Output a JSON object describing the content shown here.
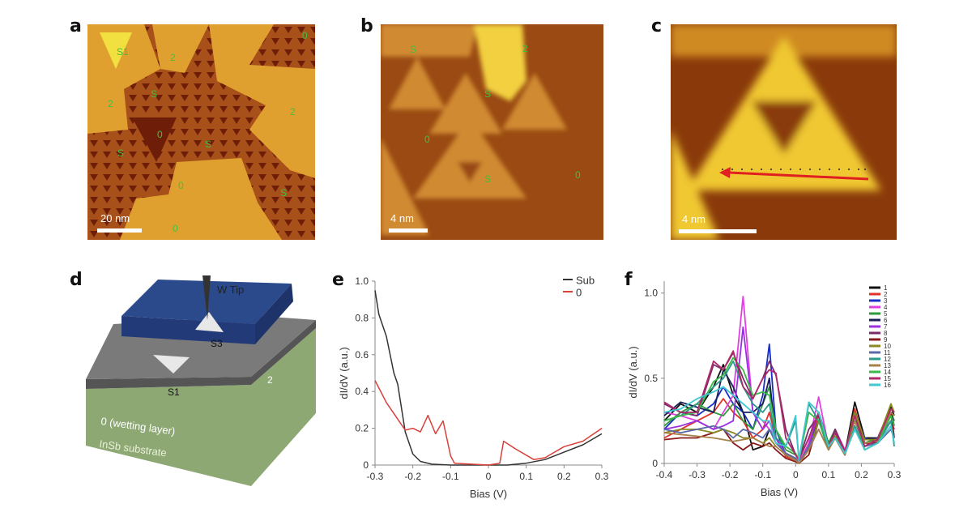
{
  "panels": {
    "a": {
      "label": "a",
      "scale_bar": "20 nm",
      "region_labels": [
        "S1",
        "2",
        "0",
        "S",
        "2",
        "0",
        "S",
        "2",
        "S",
        "0",
        "S",
        "0"
      ]
    },
    "b": {
      "label": "b",
      "scale_bar": "4 nm",
      "region_labels": [
        "S",
        "2",
        "S",
        "0",
        "S",
        "0"
      ]
    },
    "c": {
      "label": "c",
      "scale_bar": "4 nm"
    },
    "d": {
      "label": "d",
      "tip": "W Tip",
      "top_sierpinski": "S3",
      "lower_sierpinski": "S1",
      "layer_2": "2",
      "wetting_layer": "0 (wetting layer)",
      "substrate": "InSb substrate",
      "colors": {
        "layer_2": "#2b4a8c",
        "wetting": "#7a7a7a",
        "substrate": "#8ea874"
      }
    },
    "e": {
      "label": "e"
    },
    "f": {
      "label": "f"
    }
  },
  "chart_data": [
    {
      "type": "line",
      "panel": "e",
      "xlabel": "Bias (V)",
      "ylabel": "dI/dV (a.u.)",
      "xlim": [
        -0.3,
        0.3
      ],
      "ylim": [
        0,
        1.0
      ],
      "xticks": [
        "-0.3",
        "-0.2",
        "-0.1",
        "0",
        "0.1",
        "0.2",
        "0.3"
      ],
      "yticks": [
        "0",
        "0.2",
        "0.4",
        "0.6",
        "0.8",
        "1.0"
      ],
      "legend": "top-right",
      "series": [
        {
          "name": "Sub",
          "color": "#333333",
          "x": [
            -0.3,
            -0.29,
            -0.27,
            -0.25,
            -0.24,
            -0.22,
            -0.2,
            -0.18,
            -0.15,
            -0.1,
            0,
            0.05,
            0.1,
            0.15,
            0.2,
            0.25,
            0.3
          ],
          "y": [
            0.95,
            0.82,
            0.7,
            0.5,
            0.44,
            0.18,
            0.06,
            0.02,
            0.005,
            0,
            0,
            0,
            0.01,
            0.03,
            0.07,
            0.11,
            0.17
          ]
        },
        {
          "name": "0",
          "color": "#d9403a",
          "x": [
            -0.3,
            -0.27,
            -0.24,
            -0.22,
            -0.2,
            -0.18,
            -0.16,
            -0.14,
            -0.12,
            -0.1,
            -0.09,
            0,
            0.03,
            0.04,
            0.07,
            0.12,
            0.15,
            0.2,
            0.25,
            0.3
          ],
          "y": [
            0.46,
            0.34,
            0.25,
            0.19,
            0.2,
            0.18,
            0.27,
            0.17,
            0.24,
            0.05,
            0.01,
            0,
            0.01,
            0.13,
            0.09,
            0.03,
            0.04,
            0.1,
            0.13,
            0.2
          ]
        }
      ]
    },
    {
      "type": "line",
      "panel": "f",
      "xlabel": "Bias (V)",
      "ylabel": "dI/dV (a.u.)",
      "xlim": [
        -0.4,
        0.3
      ],
      "ylim": [
        0,
        1.07
      ],
      "xticks": [
        "-0.4",
        "-0.3",
        "-0.2",
        "-0.1",
        "0",
        "0.1",
        "0.2",
        "0.3"
      ],
      "yticks": [
        "0",
        "0.5",
        "1.0"
      ],
      "legend": "top-right",
      "x": [
        -0.4,
        -0.35,
        -0.3,
        -0.25,
        -0.22,
        -0.19,
        -0.16,
        -0.13,
        -0.1,
        -0.08,
        -0.06,
        -0.03,
        0,
        0.01,
        0.04,
        0.07,
        0.1,
        0.12,
        0.15,
        0.18,
        0.21,
        0.25,
        0.29,
        0.3
      ],
      "series": [
        {
          "name": "1",
          "color": "#111111",
          "values": [
            0.25,
            0.35,
            0.3,
            0.45,
            0.58,
            0.4,
            0.3,
            0.08,
            0.1,
            0.2,
            0.15,
            0.05,
            0.02,
            0,
            0.1,
            0.3,
            0.12,
            0.18,
            0.06,
            0.36,
            0.15,
            0.15,
            0.33,
            0.28
          ]
        },
        {
          "name": "2",
          "color": "#e0302a",
          "values": [
            0.15,
            0.2,
            0.25,
            0.3,
            0.38,
            0.3,
            0.25,
            0.15,
            0.2,
            0.3,
            0.15,
            0.04,
            0.02,
            0,
            0.08,
            0.28,
            0.1,
            0.18,
            0.05,
            0.32,
            0.12,
            0.12,
            0.3,
            0.25
          ]
        },
        {
          "name": "3",
          "color": "#1a2fc8",
          "values": [
            0.2,
            0.3,
            0.28,
            0.35,
            0.45,
            0.35,
            0.3,
            0.2,
            0.4,
            0.7,
            0.2,
            0.05,
            0.02,
            0,
            0.08,
            0.25,
            0.1,
            0.2,
            0.06,
            0.28,
            0.15,
            0.12,
            0.3,
            0.15
          ]
        },
        {
          "name": "4",
          "color": "#e040e0",
          "values": [
            0.3,
            0.28,
            0.25,
            0.2,
            0.3,
            0.4,
            0.98,
            0.3,
            0.25,
            0.2,
            0.15,
            0.05,
            0.03,
            0,
            0.12,
            0.39,
            0.1,
            0.2,
            0.08,
            0.25,
            0.12,
            0.12,
            0.25,
            0.2
          ]
        },
        {
          "name": "5",
          "color": "#2e9a3a",
          "values": [
            0.22,
            0.3,
            0.35,
            0.3,
            0.28,
            0.35,
            0.25,
            0.2,
            0.35,
            0.45,
            0.2,
            0.08,
            0.05,
            0.02,
            0.15,
            0.3,
            0.12,
            0.2,
            0.06,
            0.3,
            0.12,
            0.15,
            0.3,
            0.25
          ]
        },
        {
          "name": "6",
          "color": "#1a1f5a",
          "values": [
            0.28,
            0.36,
            0.33,
            0.3,
            0.55,
            0.45,
            0.3,
            0.3,
            0.35,
            0.5,
            0.15,
            0.06,
            0.03,
            0,
            0.1,
            0.25,
            0.1,
            0.18,
            0.06,
            0.3,
            0.14,
            0.15,
            0.3,
            0.22
          ]
        },
        {
          "name": "7",
          "color": "#9a30e0",
          "values": [
            0.2,
            0.22,
            0.25,
            0.2,
            0.22,
            0.25,
            0.8,
            0.3,
            0.2,
            0.25,
            0.15,
            0.06,
            0.03,
            0,
            0.1,
            0.3,
            0.08,
            0.15,
            0.06,
            0.2,
            0.1,
            0.14,
            0.25,
            0.2
          ]
        },
        {
          "name": "8",
          "color": "#7a2a6a",
          "values": [
            0.35,
            0.3,
            0.28,
            0.58,
            0.55,
            0.65,
            0.5,
            0.38,
            0.5,
            0.6,
            0.52,
            0.2,
            0.05,
            0.02,
            0.2,
            0.28,
            0.1,
            0.2,
            0.07,
            0.25,
            0.1,
            0.15,
            0.32,
            0.3
          ]
        },
        {
          "name": "9",
          "color": "#8a1a1a",
          "values": [
            0.14,
            0.15,
            0.15,
            0.18,
            0.2,
            0.12,
            0.08,
            0.12,
            0.1,
            0.12,
            0.08,
            0.03,
            0.01,
            0,
            0.05,
            0.25,
            0.1,
            0.15,
            0.05,
            0.3,
            0.12,
            0.12,
            0.3,
            0.15
          ]
        },
        {
          "name": "10",
          "color": "#8a8a20",
          "values": [
            0.18,
            0.2,
            0.2,
            0.18,
            0.2,
            0.18,
            0.15,
            0.15,
            0.12,
            0.15,
            0.1,
            0.05,
            0.02,
            0,
            0.08,
            0.25,
            0.1,
            0.16,
            0.06,
            0.3,
            0.14,
            0.14,
            0.35,
            0.3
          ]
        },
        {
          "name": "11",
          "color": "#5a6aa8",
          "values": [
            0.2,
            0.18,
            0.2,
            0.22,
            0.2,
            0.15,
            0.2,
            0.18,
            0.15,
            0.2,
            0.12,
            0.06,
            0.03,
            0,
            0.1,
            0.2,
            0.08,
            0.15,
            0.06,
            0.2,
            0.1,
            0.12,
            0.2,
            0.15
          ]
        },
        {
          "name": "12",
          "color": "#2a9a8a",
          "values": [
            0.25,
            0.28,
            0.35,
            0.45,
            0.5,
            0.6,
            0.45,
            0.35,
            0.3,
            0.35,
            0.15,
            0.1,
            0.25,
            0.02,
            0.35,
            0.25,
            0.08,
            0.15,
            0.05,
            0.22,
            0.08,
            0.12,
            0.25,
            0.1
          ]
        },
        {
          "name": "13",
          "color": "#a8804a",
          "values": [
            0.18,
            0.17,
            0.16,
            0.15,
            0.14,
            0.13,
            0.14,
            0.15,
            0.12,
            0.1,
            0.1,
            0.05,
            0.02,
            0,
            0.08,
            0.2,
            0.08,
            0.15,
            0.05,
            0.25,
            0.12,
            0.13,
            0.3,
            0.28
          ]
        },
        {
          "name": "14",
          "color": "#3ab84a",
          "values": [
            0.25,
            0.28,
            0.3,
            0.48,
            0.52,
            0.62,
            0.55,
            0.4,
            0.42,
            0.4,
            0.2,
            0.1,
            0.06,
            0.02,
            0.3,
            0.25,
            0.1,
            0.18,
            0.06,
            0.28,
            0.08,
            0.12,
            0.28,
            0.22
          ]
        },
        {
          "name": "15",
          "color": "#b02a6a",
          "values": [
            0.36,
            0.3,
            0.3,
            0.6,
            0.55,
            0.66,
            0.45,
            0.38,
            0.5,
            0.55,
            0.53,
            0.15,
            0.05,
            0.02,
            0.15,
            0.3,
            0.1,
            0.18,
            0.07,
            0.28,
            0.1,
            0.14,
            0.32,
            0.3
          ]
        },
        {
          "name": "16",
          "color": "#40c8d0",
          "values": [
            0.3,
            0.32,
            0.38,
            0.42,
            0.45,
            0.4,
            0.35,
            0.3,
            0.25,
            0.25,
            0.12,
            0.1,
            0.28,
            0.02,
            0.36,
            0.3,
            0.1,
            0.15,
            0.06,
            0.2,
            0.08,
            0.12,
            0.22,
            0.12
          ]
        }
      ]
    }
  ]
}
